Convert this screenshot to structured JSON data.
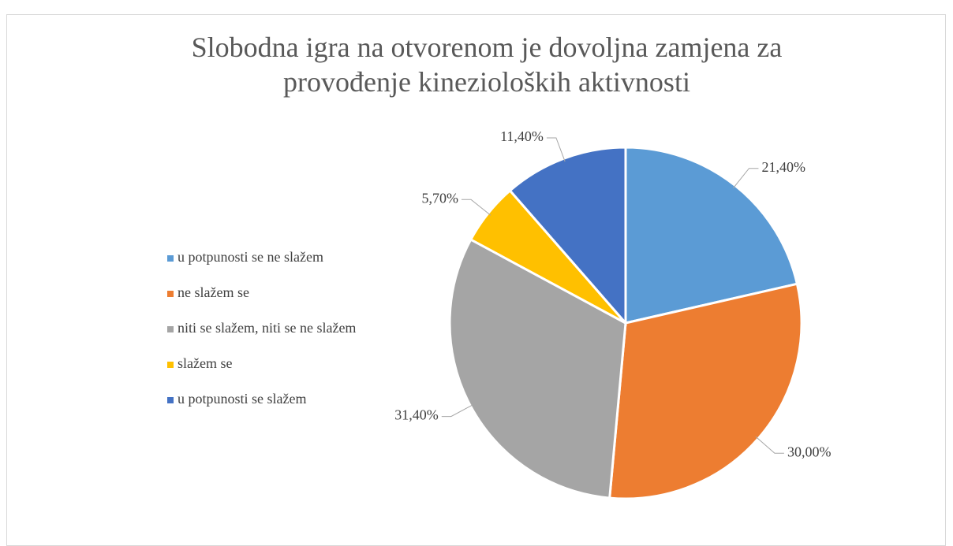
{
  "chart_data": {
    "type": "pie",
    "title": "Slobodna igra na otvorenom je dovoljna zamjena za provođenje kinezioloških aktivnosti",
    "categories": [
      "u potpunosti se ne slažem",
      "ne slažem se",
      "niti se slažem, niti se ne slažem",
      "slažem se",
      "u potpunosti se slažem"
    ],
    "values": [
      21.4,
      30.0,
      31.4,
      5.7,
      11.4
    ],
    "value_labels": [
      "21,40%",
      "30,00%",
      "31,40%",
      "5,70%",
      "11,40%"
    ],
    "colors": [
      "#5b9bd5",
      "#ed7d31",
      "#a5a5a5",
      "#ffc000",
      "#4472c4"
    ],
    "legend": "left"
  }
}
